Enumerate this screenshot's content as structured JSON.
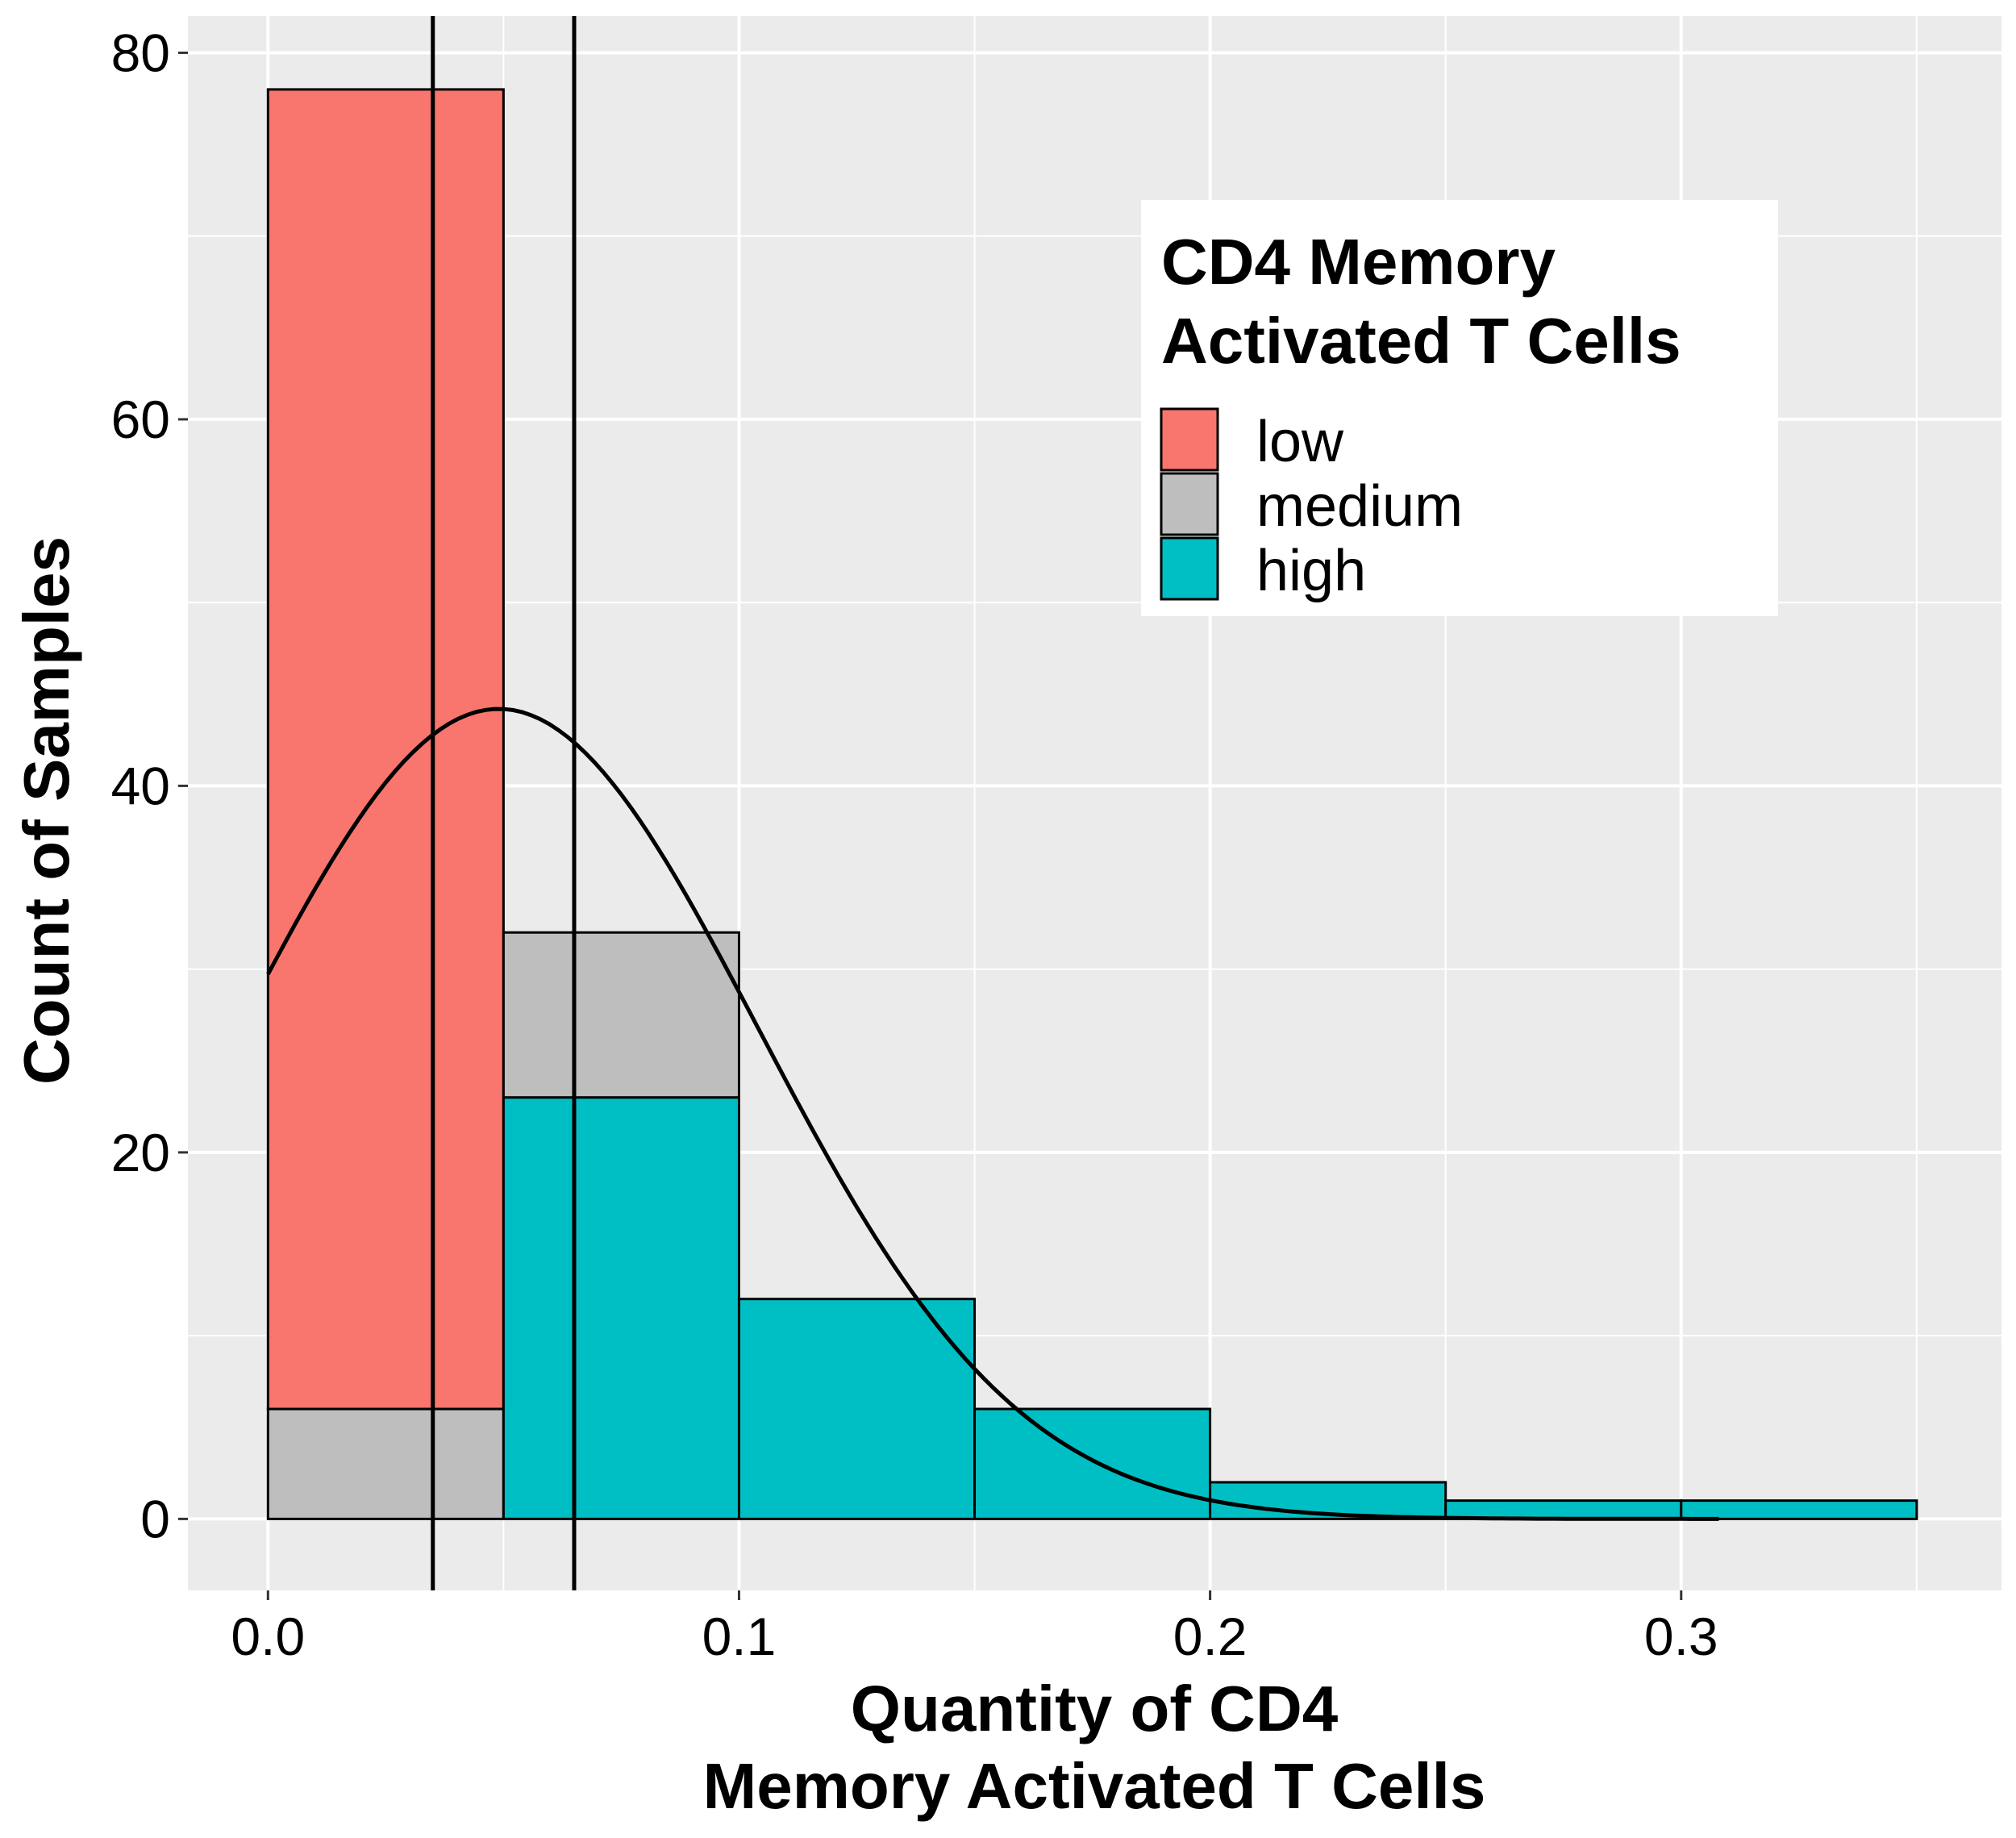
{
  "chart_data": {
    "type": "bar",
    "subtype": "stacked histogram with density curve",
    "xlabel": [
      "Quantity of CD4",
      "Memory Activated T Cells"
    ],
    "ylabel": "Count of Samples",
    "xlim": [
      -0.017,
      0.368
    ],
    "ylim": [
      -3.9,
      82
    ],
    "x_ticks": [
      {
        "value": 0.0,
        "label": "0.0"
      },
      {
        "value": 0.1,
        "label": "0.1"
      },
      {
        "value": 0.2,
        "label": "0.2"
      },
      {
        "value": 0.3,
        "label": "0.3"
      }
    ],
    "y_ticks": [
      {
        "value": 0,
        "label": "0"
      },
      {
        "value": 20,
        "label": "20"
      },
      {
        "value": 40,
        "label": "40"
      },
      {
        "value": 60,
        "label": "60"
      },
      {
        "value": 80,
        "label": "80"
      }
    ],
    "x_minor": [
      0.05,
      0.15,
      0.25,
      0.35
    ],
    "y_minor": [
      10,
      30,
      50,
      70
    ],
    "grid": true,
    "bin_width": 0.05,
    "legend": {
      "title": [
        "CD4 Memory",
        "Activated T Cells"
      ],
      "position": "top-right",
      "entries": [
        {
          "name": "low",
          "color": "#F8766D"
        },
        {
          "name": "medium",
          "color": "#BEBEBE"
        },
        {
          "name": "high",
          "color": "#00BFC4"
        }
      ]
    },
    "bins": [
      {
        "x0": 0.0,
        "x1": 0.05,
        "segments": [
          {
            "group": "medium",
            "from": 0,
            "to": 6
          },
          {
            "group": "low",
            "from": 6,
            "to": 78
          }
        ]
      },
      {
        "x0": 0.05,
        "x1": 0.1,
        "segments": [
          {
            "group": "high",
            "from": 0,
            "to": 23
          },
          {
            "group": "medium",
            "from": 23,
            "to": 32
          }
        ]
      },
      {
        "x0": 0.1,
        "x1": 0.15,
        "segments": [
          {
            "group": "high",
            "from": 0,
            "to": 12
          }
        ]
      },
      {
        "x0": 0.15,
        "x1": 0.2,
        "segments": [
          {
            "group": "high",
            "from": 0,
            "to": 6
          }
        ]
      },
      {
        "x0": 0.2,
        "x1": 0.25,
        "segments": [
          {
            "group": "high",
            "from": 0,
            "to": 2
          }
        ]
      },
      {
        "x0": 0.25,
        "x1": 0.3,
        "segments": [
          {
            "group": "high",
            "from": 0,
            "to": 1
          }
        ]
      },
      {
        "x0": 0.3,
        "x1": 0.35,
        "segments": [
          {
            "group": "high",
            "from": 0,
            "to": 1
          }
        ]
      }
    ],
    "vlines": [
      0.035,
      0.065
    ],
    "density_curve": {
      "type": "normal",
      "mean": 0.049,
      "sd": 0.055,
      "peak": 44.2,
      "x_range": [
        0.0,
        0.308
      ]
    },
    "colors": {
      "panel_background": "#EBEBEB",
      "grid": "#FFFFFF",
      "outline": "#000000"
    }
  }
}
